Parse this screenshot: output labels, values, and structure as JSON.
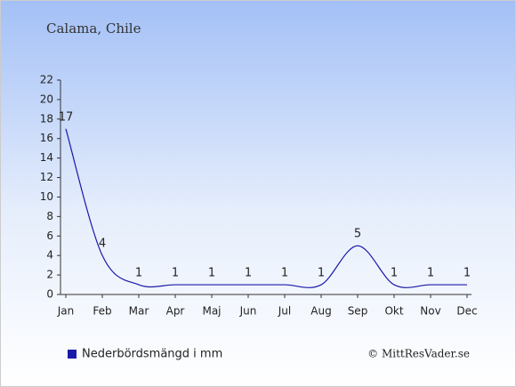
{
  "chart_data": {
    "type": "line",
    "title": "Calama, Chile",
    "categories": [
      "Jan",
      "Feb",
      "Mar",
      "Apr",
      "Maj",
      "Jun",
      "Jul",
      "Aug",
      "Sep",
      "Okt",
      "Nov",
      "Dec"
    ],
    "series": [
      {
        "name": "Nederbördsmängd i mm",
        "color": "#1a1aa8",
        "values": [
          17,
          4,
          1,
          1,
          1,
          1,
          1,
          1,
          5,
          1,
          1,
          1
        ]
      }
    ],
    "ylim": [
      0,
      22
    ],
    "yticks": [
      0,
      2,
      4,
      6,
      8,
      10,
      12,
      14,
      16,
      18,
      20,
      22
    ],
    "credit": "© MittResVader.se"
  }
}
